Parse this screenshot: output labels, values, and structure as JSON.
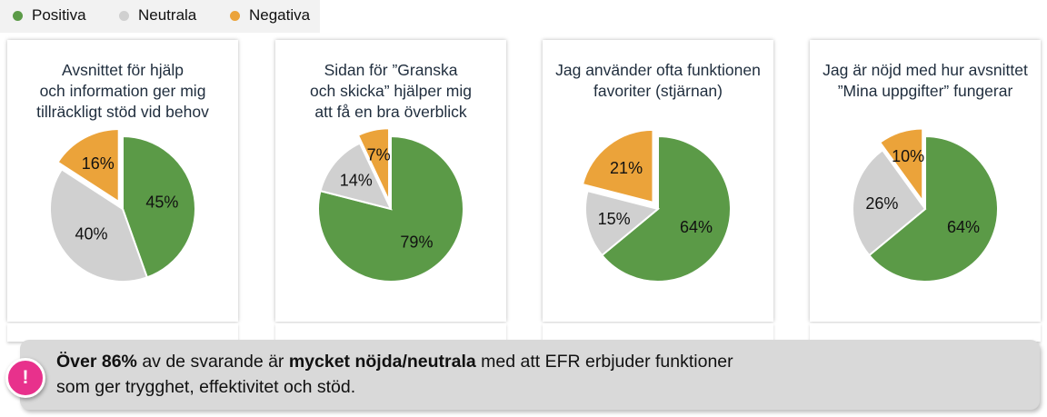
{
  "legend": [
    {
      "label": "Positiva",
      "color": "#5b9a47"
    },
    {
      "label": "Neutrala",
      "color": "#d0d0d0"
    },
    {
      "label": "Negativa",
      "color": "#eba33a"
    }
  ],
  "chart_data": [
    {
      "type": "pie",
      "title_lines": [
        "Avsnittet för hjälp",
        "och information ger mig",
        "tillräckligt stöd vid behov"
      ],
      "categories": [
        "Positiva",
        "Neutrala",
        "Negativa"
      ],
      "values": [
        45,
        40,
        16
      ],
      "labels": [
        "45%",
        "40%",
        "16%"
      ]
    },
    {
      "type": "pie",
      "title_lines": [
        "Sidan för ”Granska",
        "och skicka” hjälper mig",
        "att få en bra överblick"
      ],
      "categories": [
        "Positiva",
        "Neutrala",
        "Negativa"
      ],
      "values": [
        79,
        14,
        7
      ],
      "labels": [
        "79%",
        "14%",
        "7%"
      ]
    },
    {
      "type": "pie",
      "title_lines": [
        "Jag använder ofta funktionen",
        "favoriter (stjärnan)"
      ],
      "categories": [
        "Positiva",
        "Neutrala",
        "Negativa"
      ],
      "values": [
        64,
        15,
        21
      ],
      "labels": [
        "64%",
        "15%",
        "21%"
      ]
    },
    {
      "type": "pie",
      "title_lines": [
        "Jag är nöjd med hur avsnittet",
        "”Mina uppgifter” fungerar"
      ],
      "categories": [
        "Positiva",
        "Neutrala",
        "Negativa"
      ],
      "values": [
        64,
        26,
        10
      ],
      "labels": [
        "64%",
        "26%",
        "10%"
      ]
    }
  ],
  "banner": {
    "line1_bold_a": "Över 86%",
    "line1_text_a": " av de svarande är ",
    "line1_bold_b": "mycket nöjda/neutrala",
    "line1_text_b": " med att EFR erbjuder funktioner",
    "line2": "som ger trygghet, effektivitet och stöd."
  },
  "alert_icon": {
    "symbol": "!",
    "color": "#e8318c"
  }
}
